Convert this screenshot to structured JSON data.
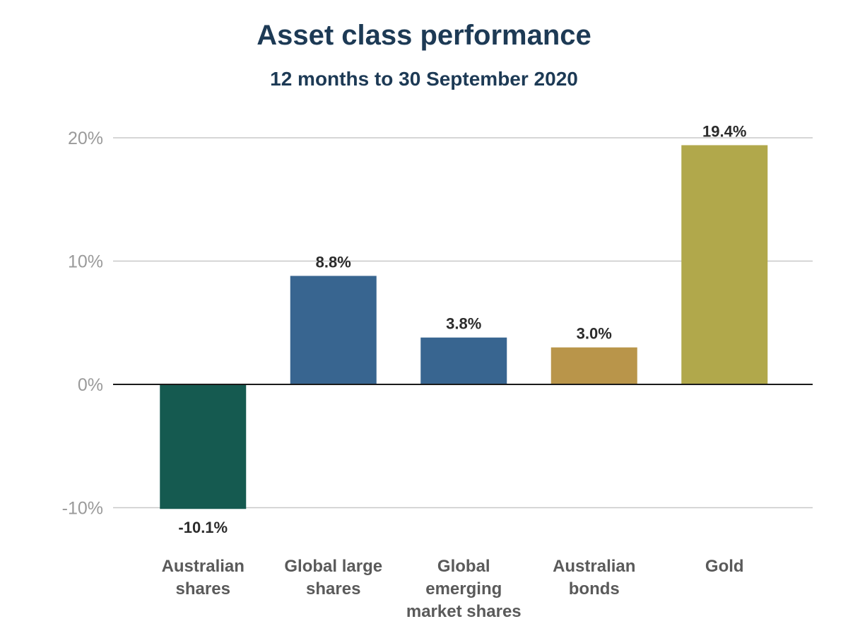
{
  "chart_data": {
    "type": "bar",
    "title": "Asset class performance",
    "subtitle": "12 months to 30 September 2020",
    "categories": [
      [
        "Australian",
        "shares"
      ],
      [
        "Global large",
        "shares"
      ],
      [
        "Global",
        "emerging",
        "market shares"
      ],
      [
        "Australian",
        "bonds"
      ],
      [
        "Gold"
      ]
    ],
    "values": [
      -10.1,
      8.8,
      3.8,
      3.0,
      19.4
    ],
    "value_labels": [
      "-10.1%",
      "8.8%",
      "3.8%",
      "3.0%",
      "19.4%"
    ],
    "colors": [
      "#155a50",
      "#386590",
      "#386590",
      "#b9954a",
      "#b1a84b"
    ],
    "yticks": [
      20,
      10,
      0,
      -10
    ],
    "ytick_labels": [
      "20%",
      "10%",
      "0%",
      "-10%"
    ],
    "ylim": [
      -10,
      20
    ],
    "grid": true,
    "xlabel": "",
    "ylabel": ""
  }
}
